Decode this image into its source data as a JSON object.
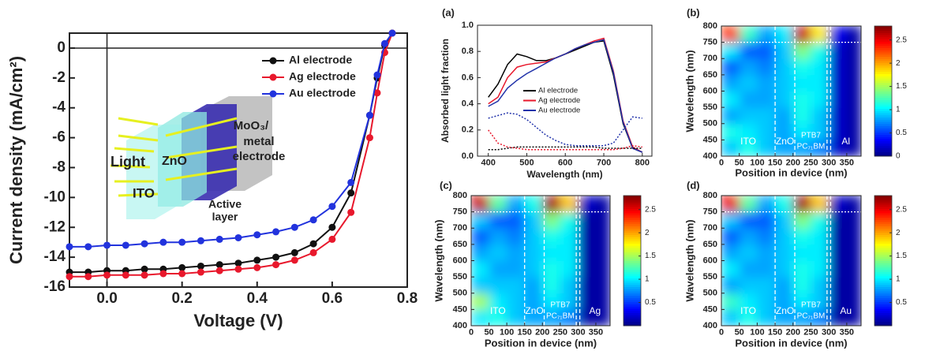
{
  "chart_data": [
    {
      "type": "line",
      "xlabel": "Voltage (V)",
      "ylabel": "Current density (mA/cm²)",
      "x": [
        -0.1,
        -0.05,
        0,
        0.05,
        0.1,
        0.15,
        0.2,
        0.25,
        0.3,
        0.35,
        0.4,
        0.45,
        0.5,
        0.55,
        0.6,
        0.65,
        0.7,
        0.72,
        0.74,
        0.76
      ],
      "series": [
        {
          "name": "Al electrode",
          "color": "#111111",
          "marker": "circle",
          "values": [
            -15.0,
            -15.0,
            -14.9,
            -14.9,
            -14.8,
            -14.8,
            -14.7,
            -14.6,
            -14.5,
            -14.4,
            -14.2,
            -14.0,
            -13.7,
            -13.1,
            -12.0,
            -9.7,
            -4.5,
            -2.0,
            0.2,
            1.0
          ]
        },
        {
          "name": "Ag electrode",
          "color": "#e8182c",
          "marker": "circle",
          "values": [
            -15.3,
            -15.3,
            -15.2,
            -15.2,
            -15.2,
            -15.1,
            -15.1,
            -15.0,
            -14.9,
            -14.8,
            -14.7,
            -14.5,
            -14.2,
            -13.7,
            -12.8,
            -11.0,
            -6.0,
            -3.0,
            -0.3,
            1.0
          ]
        },
        {
          "name": "Au electrode",
          "color": "#2233dd",
          "marker": "circle",
          "values": [
            -13.3,
            -13.3,
            -13.2,
            -13.2,
            -13.1,
            -13.0,
            -13.0,
            -12.9,
            -12.8,
            -12.7,
            -12.5,
            -12.3,
            -12.0,
            -11.5,
            -10.6,
            -9.0,
            -4.5,
            -1.8,
            0.3,
            1.0
          ]
        }
      ],
      "xlim": [
        -0.1,
        0.8
      ],
      "xticks": [
        {
          "value": 0,
          "label": "0.0"
        },
        0.2,
        0.4,
        0.6,
        0.8
      ],
      "ylim": [
        -16,
        1
      ],
      "yticks": [
        0,
        -2,
        -4,
        -6,
        -8,
        -10,
        -12,
        -14,
        -16
      ],
      "inset_labels": [
        "Light",
        "ITO",
        "ZnO",
        "Active",
        "layer",
        "MoO₃/",
        "metal",
        "electrode"
      ]
    },
    {
      "type": "line",
      "panel": "(a)",
      "xlabel": "Wavelength (nm)",
      "ylabel": "Absorbed light fraction",
      "x": [
        400,
        425,
        450,
        475,
        500,
        525,
        550,
        575,
        600,
        625,
        650,
        675,
        700,
        725,
        750,
        775,
        800
      ],
      "series": [
        {
          "name": "Al electrode",
          "color": "#000000",
          "values": [
            0.45,
            0.55,
            0.7,
            0.78,
            0.76,
            0.73,
            0.73,
            0.75,
            0.78,
            0.81,
            0.84,
            0.87,
            0.88,
            0.62,
            0.25,
            0.06,
            0.03
          ]
        },
        {
          "name": "Ag electrode",
          "color": "#e8182c",
          "values": [
            0.4,
            0.45,
            0.6,
            0.68,
            0.7,
            0.71,
            0.72,
            0.75,
            0.78,
            0.82,
            0.85,
            0.88,
            0.9,
            0.65,
            0.27,
            0.07,
            0.03
          ]
        },
        {
          "name": "Au electrode",
          "color": "#2233aa",
          "values": [
            0.38,
            0.42,
            0.52,
            0.58,
            0.63,
            0.67,
            0.71,
            0.75,
            0.78,
            0.82,
            0.85,
            0.87,
            0.89,
            0.64,
            0.26,
            0.06,
            0.03
          ]
        },
        {
          "color": "#000000",
          "dash": "dotted",
          "values": [
            0.05,
            0.05,
            0.06,
            0.07,
            0.07,
            0.07,
            0.07,
            0.07,
            0.07,
            0.07,
            0.07,
            0.07,
            0.06,
            0.06,
            0.06,
            0.06,
            0.06
          ]
        },
        {
          "color": "#e8182c",
          "dash": "dotted",
          "values": [
            0.2,
            0.1,
            0.07,
            0.06,
            0.05,
            0.05,
            0.05,
            0.05,
            0.05,
            0.05,
            0.05,
            0.05,
            0.05,
            0.05,
            0.06,
            0.08,
            0.07
          ]
        },
        {
          "color": "#2233aa",
          "dash": "dotted",
          "values": [
            0.29,
            0.31,
            0.33,
            0.32,
            0.28,
            0.22,
            0.16,
            0.12,
            0.09,
            0.08,
            0.08,
            0.08,
            0.08,
            0.1,
            0.2,
            0.3,
            0.29
          ]
        }
      ],
      "xlim": [
        372,
        825
      ],
      "xticks": [
        400,
        500,
        600,
        700,
        800
      ],
      "ylim": [
        0,
        1
      ],
      "yticks": [
        {
          "value": 0,
          "label": "0.0"
        },
        0.2,
        0.4,
        0.6,
        0.8,
        {
          "value": 1,
          "label": "1.0"
        }
      ]
    },
    {
      "type": "heatmap",
      "panel": "(b)",
      "xlabel": "Position in device (nm)",
      "ylabel": "Wavelength (nm)",
      "x_bins": [
        0,
        50,
        100,
        150,
        200,
        250,
        300,
        350,
        390
      ],
      "y_bins": [
        400,
        450,
        500,
        550,
        600,
        650,
        700,
        750,
        800
      ],
      "z": [
        [
          0.9,
          1.1,
          0.9,
          0.8,
          0.8,
          0.7,
          0.2,
          0.1
        ],
        [
          1.1,
          1.0,
          0.9,
          0.8,
          1.0,
          0.9,
          0.2,
          0.1
        ],
        [
          0.8,
          0.9,
          0.9,
          0.8,
          1.1,
          0.9,
          0.2,
          0.1
        ],
        [
          1.0,
          0.8,
          0.8,
          0.9,
          1.1,
          1.0,
          0.2,
          0.1
        ],
        [
          0.8,
          0.9,
          0.8,
          0.9,
          1.0,
          1.0,
          0.2,
          0.1
        ],
        [
          0.6,
          0.8,
          0.7,
          0.9,
          1.1,
          1.0,
          0.2,
          0.1
        ],
        [
          1.0,
          0.6,
          0.6,
          0.9,
          1.4,
          1.1,
          0.2,
          0.1
        ],
        [
          2.3,
          1.2,
          0.8,
          1.0,
          2.6,
          1.8,
          0.3,
          0.1
        ]
      ],
      "xlim": [
        0,
        390
      ],
      "xticks": [
        0,
        50,
        100,
        150,
        200,
        250,
        300,
        350
      ],
      "ylim": [
        400,
        800
      ],
      "yticks": [
        400,
        450,
        500,
        550,
        600,
        650,
        700,
        750,
        800
      ],
      "clim": [
        0,
        2.8
      ],
      "cticks": [
        0,
        0.5,
        1,
        1.5,
        2,
        2.5
      ],
      "layer_boundaries": [
        150,
        205,
        295,
        305
      ],
      "wavelength_line": 750,
      "region_labels": [
        "ITO",
        "ZnO",
        "PTB7",
        "PC₇₁BM",
        "Al"
      ]
    },
    {
      "type": "heatmap",
      "panel": "(c)",
      "xlabel": "Position in device (nm)",
      "ylabel": "Wavelength (nm)",
      "x_bins": [
        0,
        50,
        100,
        150,
        200,
        250,
        300,
        350,
        390
      ],
      "y_bins": [
        400,
        450,
        500,
        550,
        600,
        650,
        700,
        750,
        800
      ],
      "z": [
        [
          1.0,
          1.1,
          0.9,
          0.8,
          0.8,
          0.7,
          0.1,
          0.1
        ],
        [
          1.5,
          1.0,
          0.9,
          0.8,
          1.0,
          0.9,
          0.1,
          0.1
        ],
        [
          0.9,
          0.9,
          0.9,
          0.8,
          1.1,
          0.9,
          0.1,
          0.1
        ],
        [
          1.0,
          0.8,
          0.8,
          0.9,
          1.1,
          1.0,
          0.1,
          0.1
        ],
        [
          0.8,
          0.9,
          0.8,
          0.9,
          1.0,
          1.0,
          0.1,
          0.1
        ],
        [
          0.6,
          0.8,
          0.7,
          0.9,
          1.1,
          1.0,
          0.1,
          0.1
        ],
        [
          0.9,
          0.6,
          0.6,
          0.9,
          1.4,
          1.1,
          0.1,
          0.1
        ],
        [
          2.6,
          1.3,
          0.8,
          1.1,
          2.7,
          1.9,
          0.2,
          0.1
        ]
      ],
      "xlim": [
        0,
        390
      ],
      "xticks": [
        0,
        50,
        100,
        150,
        200,
        250,
        300,
        350
      ],
      "ylim": [
        400,
        800
      ],
      "yticks": [
        400,
        450,
        500,
        550,
        600,
        650,
        700,
        750,
        800
      ],
      "clim": [
        0,
        2.8
      ],
      "cticks": [
        0.5,
        1,
        1.5,
        2,
        2.5
      ],
      "layer_boundaries": [
        150,
        205,
        295,
        305
      ],
      "wavelength_line": 750,
      "region_labels": [
        "ITO",
        "ZnO",
        "PTB7",
        "PC₇₁BM",
        "Ag"
      ]
    },
    {
      "type": "heatmap",
      "panel": "(d)",
      "xlabel": "Position in device (nm)",
      "ylabel": "Wavelength (nm)",
      "x_bins": [
        0,
        50,
        100,
        150,
        200,
        250,
        300,
        350,
        390
      ],
      "y_bins": [
        400,
        450,
        500,
        550,
        600,
        650,
        700,
        750,
        800
      ],
      "z": [
        [
          0.9,
          1.1,
          0.9,
          0.8,
          0.8,
          0.7,
          0.1,
          0.1
        ],
        [
          1.2,
          1.0,
          0.9,
          0.8,
          1.0,
          0.9,
          0.1,
          0.1
        ],
        [
          0.8,
          0.9,
          0.9,
          0.8,
          1.1,
          0.9,
          0.1,
          0.1
        ],
        [
          1.0,
          0.8,
          0.8,
          0.9,
          1.1,
          1.0,
          0.1,
          0.1
        ],
        [
          0.8,
          0.9,
          0.8,
          0.9,
          1.0,
          1.0,
          0.1,
          0.1
        ],
        [
          0.6,
          0.8,
          0.7,
          0.9,
          1.1,
          1.0,
          0.1,
          0.1
        ],
        [
          0.9,
          0.6,
          0.6,
          0.9,
          1.4,
          1.1,
          0.1,
          0.1
        ],
        [
          2.5,
          1.3,
          0.8,
          1.1,
          2.7,
          1.9,
          0.2,
          0.1
        ]
      ],
      "xlim": [
        0,
        390
      ],
      "xticks": [
        0,
        50,
        100,
        150,
        200,
        250,
        300,
        350
      ],
      "ylim": [
        400,
        800
      ],
      "yticks": [
        400,
        450,
        500,
        550,
        600,
        650,
        700,
        750,
        800
      ],
      "clim": [
        0,
        2.8
      ],
      "cticks": [
        0.5,
        1,
        1.5,
        2,
        2.5
      ],
      "layer_boundaries": [
        150,
        205,
        295,
        305
      ],
      "wavelength_line": 750,
      "region_labels": [
        "ITO",
        "ZnO",
        "PTB7",
        "PC₇₁BM",
        "Au"
      ]
    }
  ]
}
